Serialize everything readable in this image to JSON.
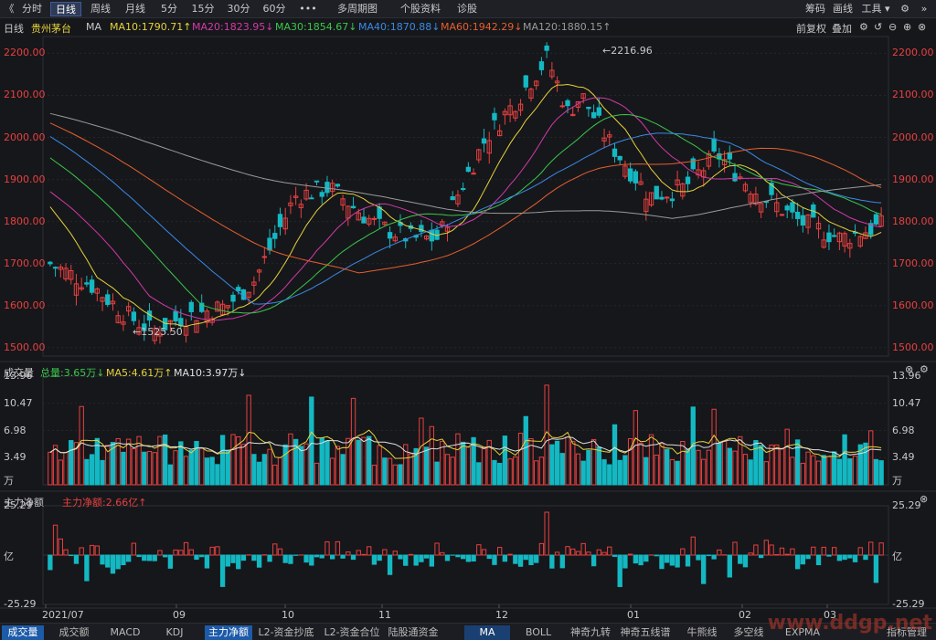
{
  "toolbar": {
    "back": "《",
    "items": [
      "分时",
      "日线",
      "周线",
      "月线",
      "5分",
      "15分",
      "30分",
      "60分",
      "•••",
      "多周期图",
      "个股资料",
      "诊股"
    ],
    "right": [
      "筹码",
      "画线",
      "工具 ▾"
    ]
  },
  "maline": {
    "period": "日线",
    "name": "贵州茅台",
    "ma": "MA",
    "ma10": "MA10:1790.71↑",
    "ma20": "MA20:1823.95↓",
    "ma30": "MA30:1854.67↓",
    "ma40": "MA40:1870.88↓",
    "ma60": "MA60:1942.29↓",
    "ma120": "MA120:1880.15↑",
    "right": [
      "前复权",
      "叠加"
    ]
  },
  "price": {
    "ticks": [
      "2200.00",
      "2100.00",
      "2000.00",
      "1900.00",
      "1800.00",
      "1700.00",
      "1600.00",
      "1500.00"
    ],
    "high_label": "←2216.96",
    "low_label": "←1525.50"
  },
  "volume": {
    "title": "成交量",
    "total": "总量:3.65万↓",
    "ma5": "MA5:4.61万↑",
    "ma10": "MA10:3.97万↓",
    "ticks": [
      "13.96",
      "10.47",
      "6.98",
      "3.49",
      "万"
    ]
  },
  "flow": {
    "title": "主力净额",
    "value": "主力净额:2.66亿↑",
    "ticks": [
      "25.29",
      "亿",
      "-25.29"
    ]
  },
  "dates": [
    "2021/07",
    "09",
    "10",
    "11",
    "12",
    "01",
    "02",
    "03"
  ],
  "tabs": [
    "成交量",
    "成交额",
    "MACD",
    "KDJ",
    "主力净额",
    "L2-资金抄底",
    "L2-资金合位",
    "陆股通资金",
    "MA",
    "BOLL",
    "神奇九转",
    "神奇五线谱",
    "牛熊线",
    "多空线",
    "EXPMA",
    "指标管理"
  ],
  "watermark": "www.ddgp.net",
  "colors": {
    "up": "#e8403f",
    "down": "#14b8c2",
    "ma10": "#e6d23a",
    "ma20": "#d23aa8",
    "ma30": "#3ac84b",
    "ma40": "#3a8ae6",
    "ma60": "#e65f2e",
    "ma120": "#9a9a9a"
  },
  "chart_data": {
    "type": "candlestick",
    "symbol": "贵州茅台",
    "period": "日线",
    "dates": [
      "2021/07",
      "09",
      "10",
      "11",
      "12",
      "01",
      "02",
      "03"
    ],
    "price_ylim": [
      1480,
      2240
    ],
    "price_high": 2216.96,
    "price_low": 1525.5,
    "monthly_close": [
      1700,
      1560,
      1850,
      1780,
      2100,
      2070,
      1950,
      1790
    ],
    "ma_values": {
      "MA10": 1790.71,
      "MA20": 1823.95,
      "MA30": 1854.67,
      "MA40": 1870.88,
      "MA60": 1942.29,
      "MA120": 1880.15
    },
    "volume_total_wan": 3.65,
    "volume_ma5_wan": 4.61,
    "volume_ma10_wan": 3.97,
    "volume_max_wan": 13.96,
    "net_flow_yi": 2.66,
    "net_flow_range_yi": [
      -25.29,
      25.29
    ]
  }
}
